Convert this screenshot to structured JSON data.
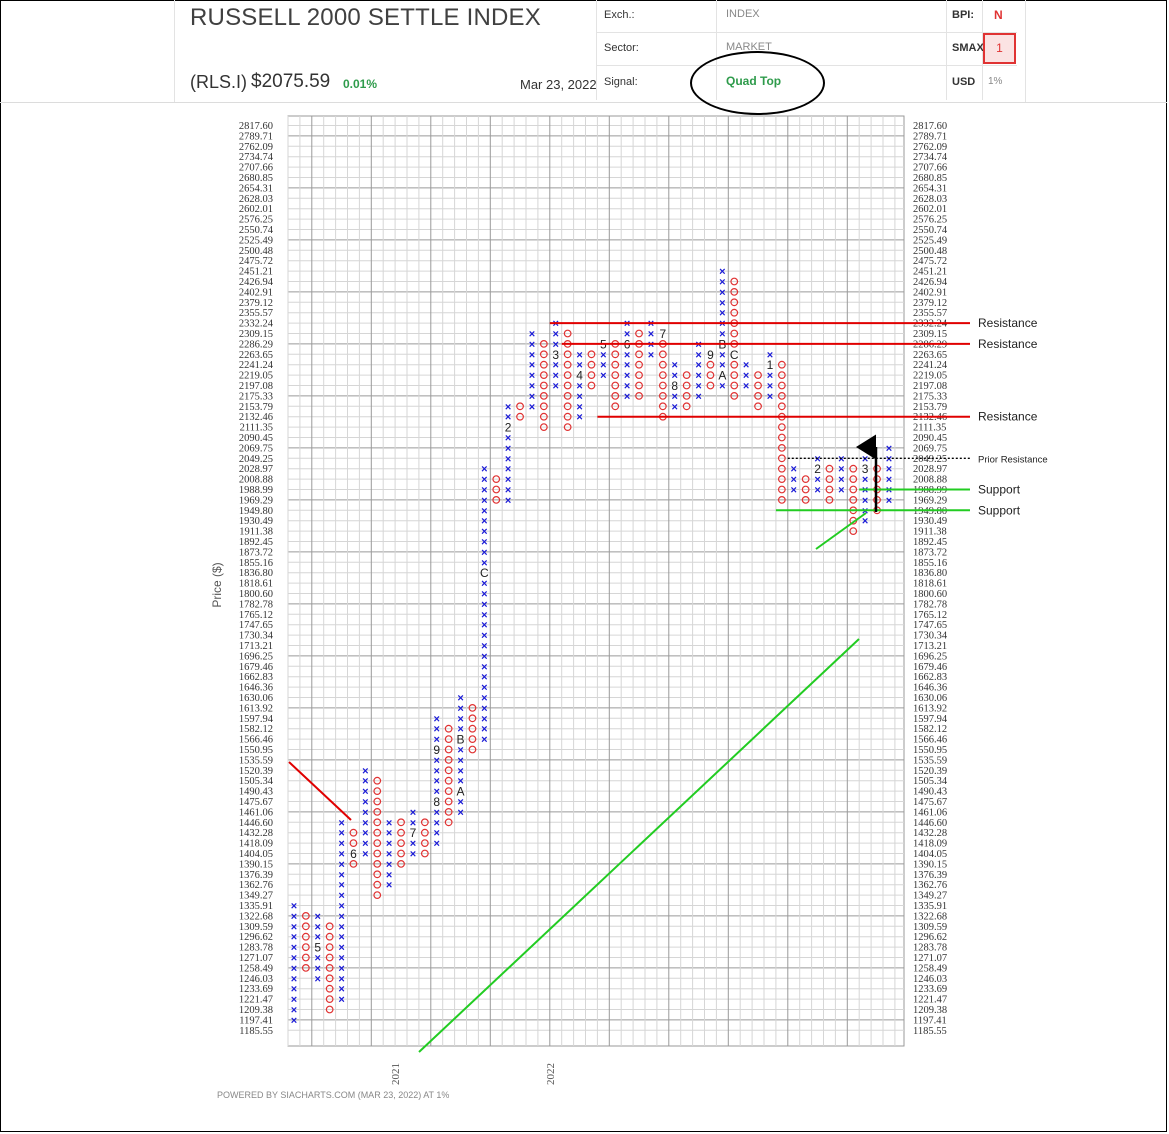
{
  "header": {
    "title": "RUSSELL 2000 SETTLE INDEX",
    "ticker": "(RLS.I)",
    "price": "$2075.59",
    "change_pct": "0.01%",
    "date": "Mar 23, 2022",
    "exch_label": "Exch.:",
    "exch_value": "INDEX",
    "sector_label": "Sector:",
    "sector_value": "MARKET",
    "signal_label": "Signal:",
    "signal_value": "Quad Top",
    "bpi_label": "BPI:",
    "bpi_value": "N",
    "smax_label": "SMAX",
    "smax_value": "1",
    "usd_label": "USD",
    "usd_value": "1%"
  },
  "footer": "POWERED BY SIACHARTS.COM (MAR 23, 2022) AT 1%",
  "colors": {
    "x_mark": "#1a1ad6",
    "o_mark": "#e03333",
    "resistance": "#e00000",
    "support": "#22cc22",
    "signal": "#2e9b4b"
  },
  "chart_data": {
    "type": "point-and-figure",
    "ylabel": "Price ($)",
    "box_size_pct": "1%",
    "y_ticks": [
      "2817.60",
      "2789.71",
      "2762.09",
      "2734.74",
      "2707.66",
      "2680.85",
      "2654.31",
      "2628.03",
      "2602.01",
      "2576.25",
      "2550.74",
      "2525.49",
      "2500.48",
      "2475.72",
      "2451.21",
      "2426.94",
      "2402.91",
      "2379.12",
      "2355.57",
      "2332.24",
      "2309.15",
      "2286.29",
      "2263.65",
      "2241.24",
      "2219.05",
      "2197.08",
      "2175.33",
      "2153.79",
      "2132.46",
      "2111.35",
      "2090.45",
      "2069.75",
      "2049.25",
      "2028.97",
      "2008.88",
      "1988.99",
      "1969.29",
      "1949.80",
      "1930.49",
      "1911.38",
      "1892.45",
      "1873.72",
      "1855.16",
      "1836.80",
      "1818.61",
      "1800.60",
      "1782.78",
      "1765.12",
      "1747.65",
      "1730.34",
      "1713.21",
      "1696.25",
      "1679.46",
      "1662.83",
      "1646.36",
      "1630.06",
      "1613.92",
      "1597.94",
      "1582.12",
      "1566.46",
      "1550.95",
      "1535.59",
      "1520.39",
      "1505.34",
      "1490.43",
      "1475.67",
      "1461.06",
      "1446.60",
      "1432.28",
      "1418.09",
      "1404.05",
      "1390.15",
      "1376.39",
      "1362.76",
      "1349.27",
      "1335.91",
      "1322.68",
      "1309.59",
      "1296.62",
      "1283.78",
      "1271.07",
      "1258.49",
      "1246.03",
      "1233.69",
      "1221.47",
      "1209.38",
      "1197.41",
      "1185.55"
    ],
    "x_labels": [
      {
        "text": "2021",
        "col": 9
      },
      {
        "text": "2022",
        "col": 22
      }
    ],
    "columns": [
      {
        "type": "X",
        "low": "1197.41",
        "high": "1335.91",
        "labels": []
      },
      {
        "type": "O",
        "low": "1258.49",
        "high": "1322.68",
        "labels": []
      },
      {
        "type": "X",
        "low": "1246.03",
        "high": "1322.68",
        "labels": [
          {
            "text": "5",
            "at": "1283.78"
          }
        ]
      },
      {
        "type": "O",
        "low": "1209.38",
        "high": "1309.59",
        "labels": []
      },
      {
        "type": "X",
        "low": "1221.47",
        "high": "1446.60",
        "labels": []
      },
      {
        "type": "O",
        "low": "1390.15",
        "high": "1432.28",
        "labels": [
          {
            "text": "6",
            "at": "1404.05"
          }
        ]
      },
      {
        "type": "X",
        "low": "1404.05",
        "high": "1520.39",
        "labels": []
      },
      {
        "type": "O",
        "low": "1349.27",
        "high": "1505.34",
        "labels": []
      },
      {
        "type": "X",
        "low": "1362.76",
        "high": "1446.60",
        "labels": []
      },
      {
        "type": "O",
        "low": "1390.15",
        "high": "1446.60",
        "labels": []
      },
      {
        "type": "X",
        "low": "1404.05",
        "high": "1461.06",
        "labels": [
          {
            "text": "7",
            "at": "1432.28"
          }
        ]
      },
      {
        "type": "O",
        "low": "1404.05",
        "high": "1446.60",
        "labels": []
      },
      {
        "type": "X",
        "low": "1418.09",
        "high": "1597.94",
        "labels": [
          {
            "text": "8",
            "at": "1475.67"
          },
          {
            "text": "9",
            "at": "1550.95"
          }
        ]
      },
      {
        "type": "O",
        "low": "1446.60",
        "high": "1582.12",
        "labels": []
      },
      {
        "type": "X",
        "low": "1461.06",
        "high": "1630.06",
        "labels": [
          {
            "text": "A",
            "at": "1490.43"
          },
          {
            "text": "B",
            "at": "1566.46"
          }
        ]
      },
      {
        "type": "O",
        "low": "1550.95",
        "high": "1613.92",
        "labels": []
      },
      {
        "type": "X",
        "low": "1566.46",
        "high": "2028.97",
        "labels": [
          {
            "text": "C",
            "at": "1836.80"
          }
        ]
      },
      {
        "type": "O",
        "low": "1969.29",
        "high": "2008.88",
        "labels": []
      },
      {
        "type": "X",
        "low": "1969.29",
        "high": "2153.79",
        "labels": [
          {
            "text": "2",
            "at": "2111.35"
          }
        ]
      },
      {
        "type": "O",
        "low": "2132.46",
        "high": "2153.79",
        "labels": []
      },
      {
        "type": "X",
        "low": "2153.79",
        "high": "2309.15",
        "labels": []
      },
      {
        "type": "O",
        "low": "2111.35",
        "high": "2286.29",
        "labels": []
      },
      {
        "type": "X",
        "low": "2197.08",
        "high": "2332.24",
        "labels": [
          {
            "text": "3",
            "at": "2263.65"
          }
        ]
      },
      {
        "type": "O",
        "low": "2111.35",
        "high": "2309.15",
        "labels": []
      },
      {
        "type": "X",
        "low": "2132.46",
        "high": "2263.65",
        "labels": [
          {
            "text": "4",
            "at": "2219.05"
          }
        ]
      },
      {
        "type": "O",
        "low": "2197.08",
        "high": "2263.65",
        "labels": []
      },
      {
        "type": "X",
        "low": "2219.05",
        "high": "2286.29",
        "labels": [
          {
            "text": "5",
            "at": "2286.29"
          }
        ]
      },
      {
        "type": "O",
        "low": "2153.79",
        "high": "2286.29",
        "labels": []
      },
      {
        "type": "X",
        "low": "2175.33",
        "high": "2332.24",
        "labels": [
          {
            "text": "6",
            "at": "2286.29"
          }
        ]
      },
      {
        "type": "O",
        "low": "2175.33",
        "high": "2309.15",
        "labels": []
      },
      {
        "type": "X",
        "low": "2263.65",
        "high": "2332.24",
        "labels": []
      },
      {
        "type": "O",
        "low": "2132.46",
        "high": "2309.15",
        "labels": [
          {
            "text": "7",
            "at": "2309.15"
          }
        ]
      },
      {
        "type": "X",
        "low": "2153.79",
        "high": "2241.24",
        "labels": [
          {
            "text": "8",
            "at": "2197.08"
          }
        ]
      },
      {
        "type": "O",
        "low": "2153.79",
        "high": "2219.05",
        "labels": []
      },
      {
        "type": "X",
        "low": "2175.33",
        "high": "2286.29",
        "labels": []
      },
      {
        "type": "O",
        "low": "2197.08",
        "high": "2263.65",
        "labels": [
          {
            "text": "9",
            "at": "2263.65"
          }
        ]
      },
      {
        "type": "X",
        "low": "2197.08",
        "high": "2451.21",
        "labels": [
          {
            "text": "A",
            "at": "2219.05"
          },
          {
            "text": "B",
            "at": "2286.29"
          }
        ]
      },
      {
        "type": "O",
        "low": "2175.33",
        "high": "2426.94",
        "labels": [
          {
            "text": "C",
            "at": "2263.65"
          }
        ]
      },
      {
        "type": "X",
        "low": "2197.08",
        "high": "2241.24",
        "labels": []
      },
      {
        "type": "O",
        "low": "2153.79",
        "high": "2219.05",
        "labels": []
      },
      {
        "type": "X",
        "low": "2175.33",
        "high": "2263.65",
        "labels": [
          {
            "text": "1",
            "at": "2241.24"
          }
        ]
      },
      {
        "type": "O",
        "low": "1969.29",
        "high": "2241.24",
        "labels": []
      },
      {
        "type": "X",
        "low": "1988.99",
        "high": "2028.97",
        "labels": []
      },
      {
        "type": "O",
        "low": "1969.29",
        "high": "2008.88",
        "labels": []
      },
      {
        "type": "X",
        "low": "1988.99",
        "high": "2049.25",
        "labels": [
          {
            "text": "2",
            "at": "2028.97"
          }
        ]
      },
      {
        "type": "O",
        "low": "1969.29",
        "high": "2028.97",
        "labels": []
      },
      {
        "type": "X",
        "low": "1988.99",
        "high": "2049.25",
        "labels": []
      },
      {
        "type": "O",
        "low": "1911.38",
        "high": "2028.97",
        "labels": []
      },
      {
        "type": "X",
        "low": "1930.49",
        "high": "2049.25",
        "labels": [
          {
            "text": "3",
            "at": "2028.97"
          }
        ]
      },
      {
        "type": "O",
        "low": "1949.80",
        "high": "2028.97",
        "labels": []
      },
      {
        "type": "X",
        "low": "1969.29",
        "high": "2069.75",
        "labels": []
      }
    ],
    "trend_lines": [
      {
        "type": "resistance",
        "label": "Resistance",
        "price": "2332.24",
        "from_col": 22
      },
      {
        "type": "resistance",
        "label": "Resistance",
        "price": "2286.29",
        "from_col": 23
      },
      {
        "type": "resistance",
        "label": "Resistance",
        "price": "2132.46",
        "from_col": 26
      },
      {
        "type": "prior-resistance",
        "label": "Prior Resistance",
        "price": "2049.25",
        "from_col": 42
      },
      {
        "type": "support",
        "label": "Support",
        "price": "1988.99",
        "from_col": 48
      },
      {
        "type": "support",
        "label": "Support",
        "price": "1949.80",
        "from_col": 41
      }
    ]
  }
}
